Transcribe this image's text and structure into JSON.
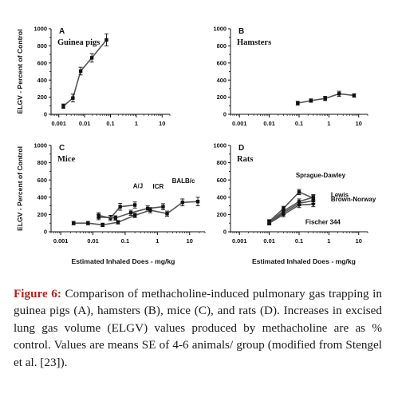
{
  "chart_data": [
    {
      "type": "line",
      "label": "A",
      "title": "Guinea pigs",
      "x_scale": "log",
      "xlim": [
        0.0005,
        20
      ],
      "ylim": [
        0,
        1000
      ],
      "yticks": [
        0,
        200,
        400,
        600,
        800,
        1000
      ],
      "xticks": [
        0.001,
        0.01,
        0.1,
        1,
        10
      ],
      "xtick_labels": [
        "0.001",
        "0.01",
        "0.1",
        "1",
        "10"
      ],
      "ylabel": "ELGV - Percent of Control",
      "xlabel": "",
      "series": [
        {
          "name": "",
          "marker": "square",
          "points": [
            {
              "x": 0.0015,
              "y": 95,
              "err": 25
            },
            {
              "x": 0.0035,
              "y": 190,
              "err": 45
            },
            {
              "x": 0.007,
              "y": 505,
              "err": 45
            },
            {
              "x": 0.019,
              "y": 660,
              "err": 50
            },
            {
              "x": 0.07,
              "y": 870,
              "err": 70
            }
          ]
        }
      ]
    },
    {
      "type": "line",
      "label": "B",
      "title": "Hamsters",
      "x_scale": "log",
      "xlim": [
        0.0005,
        20
      ],
      "ylim": [
        0,
        1000
      ],
      "yticks": [
        0,
        200,
        400,
        600,
        800,
        1000
      ],
      "xticks": [
        0.001,
        0.01,
        0.1,
        1,
        10
      ],
      "xtick_labels": [
        "0.001",
        "0.01",
        "0.1",
        "1",
        "10"
      ],
      "ylabel": "",
      "xlabel": "",
      "series": [
        {
          "name": "",
          "marker": "square",
          "points": [
            {
              "x": 0.09,
              "y": 130,
              "err": 22
            },
            {
              "x": 0.25,
              "y": 160,
              "err": 20
            },
            {
              "x": 0.75,
              "y": 185,
              "err": 25
            },
            {
              "x": 2.2,
              "y": 240,
              "err": 30
            },
            {
              "x": 7,
              "y": 220,
              "err": 20
            }
          ]
        }
      ]
    },
    {
      "type": "line",
      "label": "C",
      "title": "Mice",
      "x_scale": "log",
      "xlim": [
        0.0005,
        30
      ],
      "ylim": [
        0,
        1000
      ],
      "yticks": [
        0,
        200,
        400,
        600,
        800,
        1000
      ],
      "xticks": [
        0.001,
        0.01,
        0.1,
        1,
        10
      ],
      "xtick_labels": [
        "0.001",
        "0.01",
        "0.1",
        "1",
        "10"
      ],
      "ylabel": "ELGV - Percent of Control",
      "xlabel": "Estimated Inhaled Does - mg/kg",
      "series": [
        {
          "name": "A/J",
          "marker": "square",
          "points": [
            {
              "x": 0.015,
              "y": 190,
              "err": 30
            },
            {
              "x": 0.035,
              "y": 160,
              "err": 30
            },
            {
              "x": 0.07,
              "y": 290,
              "err": 40
            },
            {
              "x": 0.2,
              "y": 310,
              "err": 35
            }
          ]
        },
        {
          "name": "ICR",
          "marker": "square",
          "points": [
            {
              "x": 0.015,
              "y": 170,
              "err": 30
            },
            {
              "x": 0.05,
              "y": 160,
              "err": 25
            },
            {
              "x": 0.15,
              "y": 220,
              "err": 30
            },
            {
              "x": 0.5,
              "y": 270,
              "err": 30
            },
            {
              "x": 1.5,
              "y": 290,
              "err": 35
            }
          ]
        },
        {
          "name": "BALB/c",
          "marker": "square",
          "points": [
            {
              "x": 0.0025,
              "y": 100,
              "err": 20
            },
            {
              "x": 0.007,
              "y": 100,
              "err": 20
            },
            {
              "x": 0.02,
              "y": 80,
              "err": 20
            },
            {
              "x": 0.06,
              "y": 110,
              "err": 20
            },
            {
              "x": 0.2,
              "y": 190,
              "err": 25
            },
            {
              "x": 0.6,
              "y": 250,
              "err": 30
            },
            {
              "x": 2,
              "y": 210,
              "err": 30
            },
            {
              "x": 6,
              "y": 340,
              "err": 40
            },
            {
              "x": 18,
              "y": 350,
              "err": 50
            }
          ]
        }
      ]
    },
    {
      "type": "line",
      "label": "D",
      "title": "Rats",
      "x_scale": "log",
      "xlim": [
        0.0005,
        20
      ],
      "ylim": [
        0,
        1000
      ],
      "yticks": [
        0,
        200,
        400,
        600,
        800,
        1000
      ],
      "xticks": [
        0.001,
        0.01,
        0.1,
        1,
        10
      ],
      "xtick_labels": [
        "0.001",
        "0.01",
        "0.1",
        "1",
        "10"
      ],
      "ylabel": "",
      "xlabel": "Estimated Inhaled Does - mg/kg",
      "series": [
        {
          "name": "Sprague-Dawley",
          "marker": "square",
          "points": [
            {
              "x": 0.01,
              "y": 120,
              "err": 20
            },
            {
              "x": 0.03,
              "y": 270,
              "err": 25
            },
            {
              "x": 0.1,
              "y": 460,
              "err": 30
            },
            {
              "x": 0.3,
              "y": 390,
              "err": 30
            }
          ]
        },
        {
          "name": "Lewis",
          "marker": "circle",
          "points": [
            {
              "x": 0.01,
              "y": 110,
              "err": 20
            },
            {
              "x": 0.03,
              "y": 240,
              "err": 25
            },
            {
              "x": 0.1,
              "y": 350,
              "err": 30
            },
            {
              "x": 0.3,
              "y": 400,
              "err": 30
            }
          ]
        },
        {
          "name": "Brown-Norway",
          "marker": "triangle",
          "points": [
            {
              "x": 0.01,
              "y": 100,
              "err": 20
            },
            {
              "x": 0.03,
              "y": 220,
              "err": 25
            },
            {
              "x": 0.1,
              "y": 330,
              "err": 30
            },
            {
              "x": 0.3,
              "y": 360,
              "err": 30
            }
          ]
        },
        {
          "name": "Fischer 344",
          "marker": "diamond",
          "points": [
            {
              "x": 0.01,
              "y": 100,
              "err": 20
            },
            {
              "x": 0.03,
              "y": 200,
              "err": 25
            },
            {
              "x": 0.1,
              "y": 310,
              "err": 30
            },
            {
              "x": 0.3,
              "y": 320,
              "err": 30
            }
          ]
        }
      ]
    }
  ],
  "caption": {
    "lead": "Figure 6:",
    "text": " Comparison of methacholine-induced pulmonary gas trapping in guinea pigs (A), hamsters (B), mice (C), and rats (D). Increases in excised lung gas volume (ELGV) values produced by methacholine are as % control. Values are means SE of 4-6 animals/ group (modified from Stengel et al. [23])."
  },
  "colors": {
    "caption_lead": "#b5211c",
    "ink": "#111111",
    "line": "#555555"
  }
}
